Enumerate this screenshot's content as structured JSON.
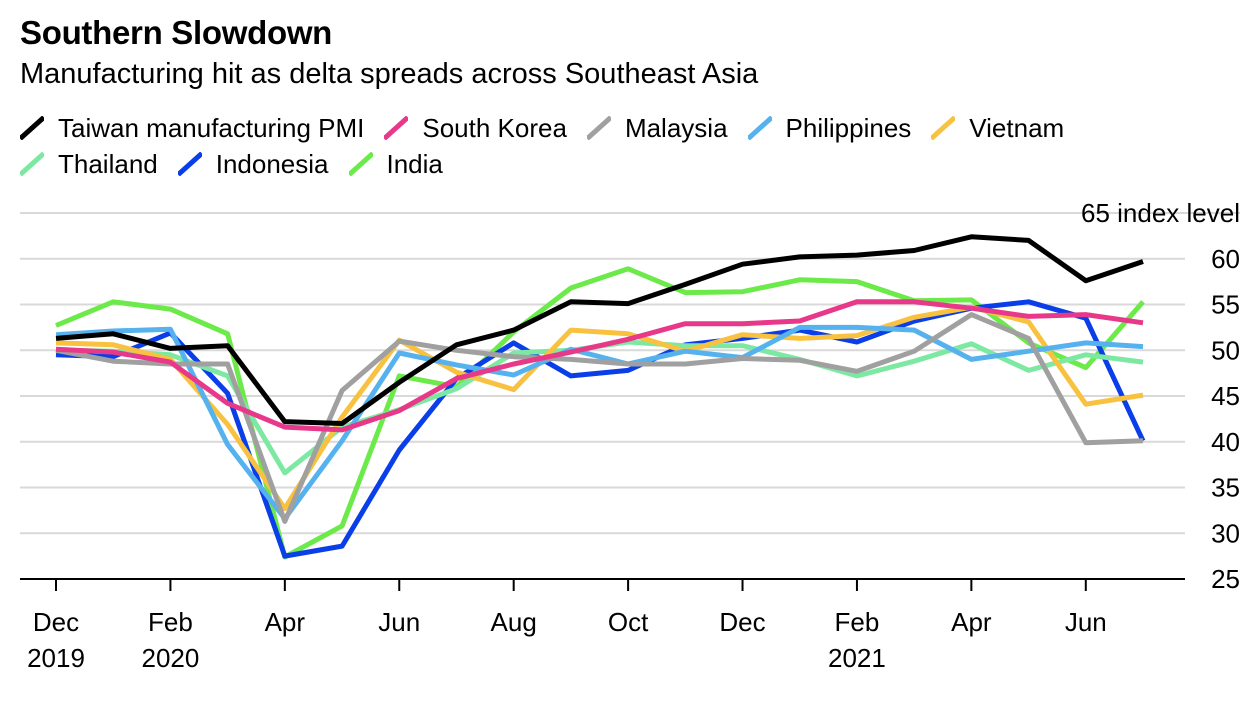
{
  "title": "Southern Slowdown",
  "subtitle": "Manufacturing hit as delta spreads across Southeast Asia",
  "chart_data": {
    "type": "line",
    "title": "Southern Slowdown",
    "subtitle": "Manufacturing hit as delta spreads across Southeast Asia",
    "y_unit_label": "65 index level",
    "ylim": [
      25,
      65
    ],
    "y_ticks": [
      25,
      30,
      35,
      40,
      45,
      50,
      55,
      60
    ],
    "y_axis_position": "right",
    "grid": true,
    "legend_position": "top",
    "x": [
      "2019-12",
      "2020-01",
      "2020-02",
      "2020-03",
      "2020-04",
      "2020-05",
      "2020-06",
      "2020-07",
      "2020-08",
      "2020-09",
      "2020-10",
      "2020-11",
      "2020-12",
      "2021-01",
      "2021-02",
      "2021-03",
      "2021-04",
      "2021-05",
      "2021-06",
      "2021-07"
    ],
    "x_tick_labels": [
      {
        "x": "2019-12",
        "line1": "Dec",
        "line2": "2019"
      },
      {
        "x": "2020-02",
        "line1": "Feb",
        "line2": "2020"
      },
      {
        "x": "2020-04",
        "line1": "Apr",
        "line2": ""
      },
      {
        "x": "2020-06",
        "line1": "Jun",
        "line2": ""
      },
      {
        "x": "2020-08",
        "line1": "Aug",
        "line2": ""
      },
      {
        "x": "2020-10",
        "line1": "Oct",
        "line2": ""
      },
      {
        "x": "2020-12",
        "line1": "Dec",
        "line2": ""
      },
      {
        "x": "2021-02",
        "line1": "Feb",
        "line2": "2021"
      },
      {
        "x": "2021-04",
        "line1": "Apr",
        "line2": ""
      },
      {
        "x": "2021-06",
        "line1": "Jun",
        "line2": ""
      }
    ],
    "series": [
      {
        "name": "Taiwan manufacturing PMI",
        "color": "#000000",
        "values": [
          51.3,
          51.8,
          50.2,
          50.5,
          42.2,
          42.0,
          46.5,
          50.6,
          52.2,
          55.3,
          55.1,
          57.2,
          59.4,
          60.2,
          60.4,
          60.9,
          62.4,
          62.0,
          57.6,
          59.7
        ]
      },
      {
        "name": "South Korea",
        "color": "#e8388a",
        "values": [
          50.1,
          49.8,
          48.7,
          44.2,
          41.6,
          41.3,
          43.4,
          46.9,
          48.5,
          49.8,
          51.2,
          52.9,
          52.9,
          53.2,
          55.3,
          55.3,
          54.6,
          53.7,
          53.9,
          53.0
        ]
      },
      {
        "name": "Malaysia",
        "color": "#a0a0a0",
        "values": [
          50.0,
          48.8,
          48.5,
          48.5,
          31.3,
          45.6,
          51.0,
          50.0,
          49.3,
          49.0,
          48.5,
          48.5,
          49.1,
          48.9,
          47.7,
          49.9,
          53.9,
          51.3,
          39.9,
          40.1
        ]
      },
      {
        "name": "Philippines",
        "color": "#55b2ee",
        "values": [
          51.7,
          52.1,
          52.3,
          39.7,
          31.6,
          40.1,
          49.7,
          48.4,
          47.3,
          50.1,
          48.5,
          49.9,
          49.2,
          52.5,
          52.5,
          52.2,
          49.0,
          49.9,
          50.8,
          50.4
        ]
      },
      {
        "name": "Vietnam",
        "color": "#f8c240",
        "values": [
          50.8,
          50.6,
          49.0,
          41.9,
          32.7,
          42.7,
          51.1,
          47.6,
          45.7,
          52.2,
          51.8,
          49.9,
          51.7,
          51.3,
          51.6,
          53.6,
          54.7,
          53.1,
          44.1,
          45.1
        ]
      },
      {
        "name": "Thailand",
        "color": "#7de8a2",
        "values": [
          50.0,
          49.9,
          49.5,
          47.2,
          36.6,
          41.6,
          43.5,
          45.8,
          49.7,
          50.0,
          50.9,
          50.5,
          50.5,
          49.0,
          47.2,
          48.8,
          50.7,
          47.8,
          49.5,
          48.7
        ]
      },
      {
        "name": "Indonesia",
        "color": "#0a3ee8",
        "values": [
          49.5,
          49.3,
          51.9,
          45.3,
          27.5,
          28.6,
          39.1,
          46.9,
          50.8,
          47.2,
          47.8,
          50.6,
          51.3,
          52.2,
          50.9,
          53.2,
          54.6,
          55.3,
          53.5,
          40.1
        ]
      },
      {
        "name": "India",
        "color": "#6bea4a",
        "values": [
          52.7,
          55.3,
          54.5,
          51.8,
          27.4,
          30.8,
          47.2,
          46.0,
          52.0,
          56.8,
          58.9,
          56.3,
          56.4,
          57.7,
          57.5,
          55.4,
          55.5,
          50.8,
          48.1,
          55.3
        ]
      }
    ]
  }
}
